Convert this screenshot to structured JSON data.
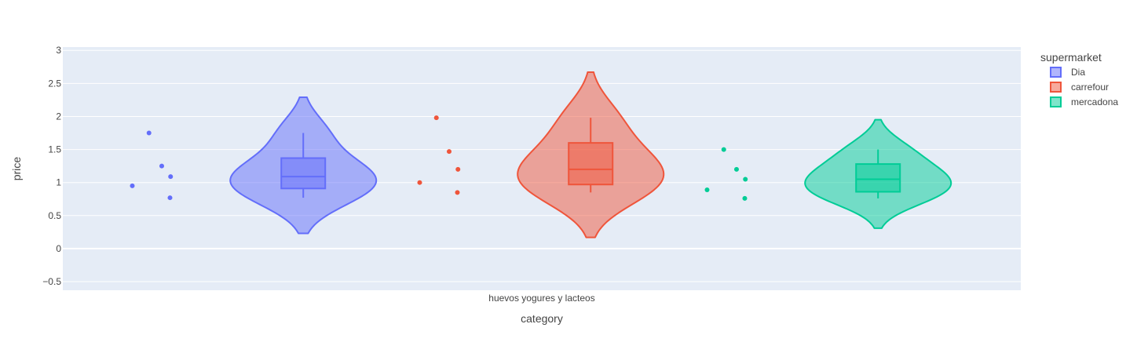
{
  "chart_data": {
    "type": "violin",
    "xlabel": "category",
    "ylabel": "price",
    "categories": [
      "huevos yogures y lacteos"
    ],
    "ylim": [
      -0.63,
      3.05
    ],
    "yticks": [
      -0.5,
      0,
      0.5,
      1,
      1.5,
      2,
      2.5,
      3
    ],
    "ytick_labels": [
      "−0.5",
      "0",
      "0.5",
      "1",
      "1.5",
      "2",
      "2.5",
      "3"
    ],
    "grid": true,
    "legend_title": "supermarket",
    "legend_position": "top-right",
    "series": [
      {
        "name": "Dia",
        "color": "#636efa",
        "points": [
          1.75,
          1.25,
          1.09,
          0.95,
          0.77
        ],
        "kde_range": [
          0.23,
          2.29
        ],
        "box": {
          "q1": 0.91,
          "median": 1.09,
          "q3": 1.37,
          "whisker_low": 0.77,
          "whisker_high": 1.75
        }
      },
      {
        "name": "carrefour",
        "color": "#ef553b",
        "points": [
          1.98,
          1.47,
          1.2,
          1.0,
          0.85
        ],
        "kde_range": [
          0.17,
          2.67
        ],
        "box": {
          "q1": 0.97,
          "median": 1.2,
          "q3": 1.6,
          "whisker_low": 0.85,
          "whisker_high": 1.98
        }
      },
      {
        "name": "mercadona",
        "color": "#00cc96",
        "points": [
          1.5,
          1.2,
          1.05,
          0.89,
          0.76
        ],
        "kde_range": [
          0.31,
          1.95
        ],
        "box": {
          "q1": 0.86,
          "median": 1.05,
          "q3": 1.28,
          "whisker_low": 0.76,
          "whisker_high": 1.5
        }
      }
    ]
  }
}
